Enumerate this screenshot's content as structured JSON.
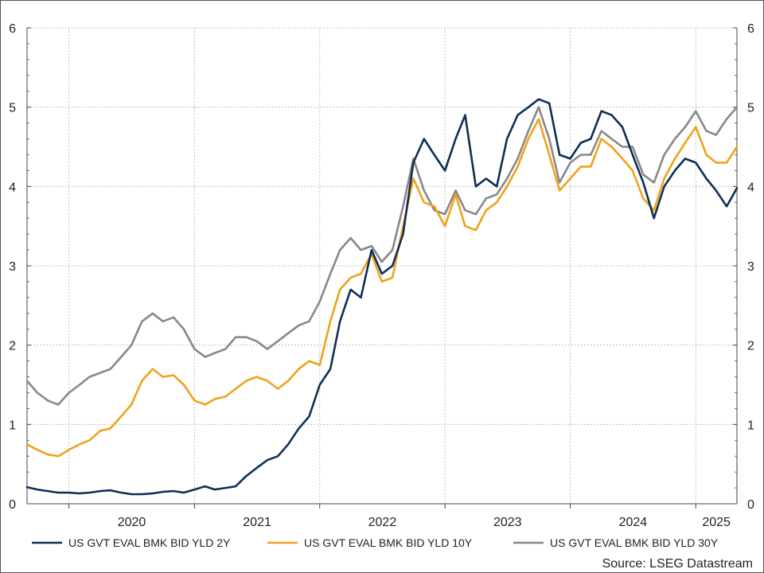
{
  "colors": {
    "series_2y": "#0d2f57",
    "series_10y": "#f0a21b",
    "series_30y": "#888888",
    "grid": "#b5b5b5",
    "axis": "#444444",
    "border": "#555555"
  },
  "chart_data": {
    "type": "line",
    "title": "",
    "xlabel": "",
    "ylabel": "",
    "x_range": [
      "2019-09-01",
      "2025-05-01"
    ],
    "ylim": [
      0,
      6
    ],
    "y_ticks": [
      0,
      1,
      2,
      3,
      4,
      5,
      6
    ],
    "y_tick_labels_left": [
      "0",
      "1",
      "2",
      "3",
      "4",
      "5",
      "6"
    ],
    "y_tick_labels_right": [
      "0",
      "1",
      "2",
      "3",
      "4",
      "5",
      "6"
    ],
    "x_tick_labels": [
      "2020",
      "2021",
      "2022",
      "2023",
      "2024",
      "2025"
    ],
    "grid": true,
    "legend_position": "bottom",
    "source": "Source: LSEG Datastream",
    "series": [
      {
        "name": "US GVT EVAL BMK BID YLD 2Y",
        "color_key": "series_2y",
        "points": [
          [
            "2019-09-01",
            0.21
          ],
          [
            "2019-10-01",
            0.18
          ],
          [
            "2019-11-01",
            0.16
          ],
          [
            "2019-12-01",
            0.14
          ],
          [
            "2020-01-01",
            0.14
          ],
          [
            "2020-02-01",
            0.13
          ],
          [
            "2020-03-01",
            0.14
          ],
          [
            "2020-04-01",
            0.16
          ],
          [
            "2020-05-01",
            0.17
          ],
          [
            "2020-06-01",
            0.14
          ],
          [
            "2020-07-01",
            0.12
          ],
          [
            "2020-08-01",
            0.12
          ],
          [
            "2020-09-01",
            0.13
          ],
          [
            "2020-10-01",
            0.15
          ],
          [
            "2020-11-01",
            0.16
          ],
          [
            "2020-12-01",
            0.14
          ],
          [
            "2021-01-01",
            0.18
          ],
          [
            "2021-02-01",
            0.22
          ],
          [
            "2021-03-01",
            0.18
          ],
          [
            "2021-04-01",
            0.2
          ],
          [
            "2021-05-01",
            0.22
          ],
          [
            "2021-06-01",
            0.35
          ],
          [
            "2021-07-01",
            0.45
          ],
          [
            "2021-08-01",
            0.55
          ],
          [
            "2021-09-01",
            0.6
          ],
          [
            "2021-10-01",
            0.75
          ],
          [
            "2021-11-01",
            0.95
          ],
          [
            "2021-12-01",
            1.1
          ],
          [
            "2022-01-01",
            1.5
          ],
          [
            "2022-02-01",
            1.7
          ],
          [
            "2022-03-01",
            2.3
          ],
          [
            "2022-04-01",
            2.7
          ],
          [
            "2022-05-01",
            2.6
          ],
          [
            "2022-06-01",
            3.2
          ],
          [
            "2022-07-01",
            2.9
          ],
          [
            "2022-08-01",
            3.0
          ],
          [
            "2022-09-01",
            3.4
          ],
          [
            "2022-10-01",
            4.3
          ],
          [
            "2022-11-01",
            4.6
          ],
          [
            "2022-12-01",
            4.4
          ],
          [
            "2023-01-01",
            4.2
          ],
          [
            "2023-02-01",
            4.6
          ],
          [
            "2023-03-01",
            4.9
          ],
          [
            "2023-04-01",
            4.0
          ],
          [
            "2023-05-01",
            4.1
          ],
          [
            "2023-06-01",
            4.0
          ],
          [
            "2023-07-01",
            4.6
          ],
          [
            "2023-08-01",
            4.9
          ],
          [
            "2023-09-01",
            5.0
          ],
          [
            "2023-10-01",
            5.1
          ],
          [
            "2023-11-01",
            5.05
          ],
          [
            "2023-12-01",
            4.4
          ],
          [
            "2024-01-01",
            4.35
          ],
          [
            "2024-02-01",
            4.55
          ],
          [
            "2024-03-01",
            4.6
          ],
          [
            "2024-04-01",
            4.95
          ],
          [
            "2024-05-01",
            4.9
          ],
          [
            "2024-06-01",
            4.75
          ],
          [
            "2024-07-01",
            4.4
          ],
          [
            "2024-08-01",
            4.05
          ],
          [
            "2024-09-01",
            3.6
          ],
          [
            "2024-10-01",
            4.0
          ],
          [
            "2024-11-01",
            4.2
          ],
          [
            "2024-12-01",
            4.35
          ],
          [
            "2025-01-01",
            4.3
          ],
          [
            "2025-02-01",
            4.1
          ],
          [
            "2025-03-01",
            3.95
          ],
          [
            "2025-04-01",
            3.75
          ],
          [
            "2025-05-01",
            3.98
          ]
        ]
      },
      {
        "name": "US GVT EVAL BMK BID YLD 10Y",
        "color_key": "series_10y",
        "points": [
          [
            "2019-09-01",
            0.75
          ],
          [
            "2019-10-01",
            0.68
          ],
          [
            "2019-11-01",
            0.62
          ],
          [
            "2019-12-01",
            0.6
          ],
          [
            "2020-01-01",
            0.68
          ],
          [
            "2020-02-01",
            0.75
          ],
          [
            "2020-03-01",
            0.8
          ],
          [
            "2020-04-01",
            0.92
          ],
          [
            "2020-05-01",
            0.95
          ],
          [
            "2020-06-01",
            1.1
          ],
          [
            "2020-07-01",
            1.25
          ],
          [
            "2020-08-01",
            1.55
          ],
          [
            "2020-09-01",
            1.7
          ],
          [
            "2020-10-01",
            1.6
          ],
          [
            "2020-11-01",
            1.62
          ],
          [
            "2020-12-01",
            1.5
          ],
          [
            "2021-01-01",
            1.3
          ],
          [
            "2021-02-01",
            1.25
          ],
          [
            "2021-03-01",
            1.32
          ],
          [
            "2021-04-01",
            1.35
          ],
          [
            "2021-05-01",
            1.45
          ],
          [
            "2021-06-01",
            1.55
          ],
          [
            "2021-07-01",
            1.6
          ],
          [
            "2021-08-01",
            1.55
          ],
          [
            "2021-09-01",
            1.45
          ],
          [
            "2021-10-01",
            1.55
          ],
          [
            "2021-11-01",
            1.7
          ],
          [
            "2021-12-01",
            1.8
          ],
          [
            "2022-01-01",
            1.75
          ],
          [
            "2022-02-01",
            2.3
          ],
          [
            "2022-03-01",
            2.7
          ],
          [
            "2022-04-01",
            2.85
          ],
          [
            "2022-05-01",
            2.9
          ],
          [
            "2022-06-01",
            3.15
          ],
          [
            "2022-07-01",
            2.8
          ],
          [
            "2022-08-01",
            2.85
          ],
          [
            "2022-09-01",
            3.5
          ],
          [
            "2022-10-01",
            4.1
          ],
          [
            "2022-11-01",
            3.8
          ],
          [
            "2022-12-01",
            3.75
          ],
          [
            "2023-01-01",
            3.5
          ],
          [
            "2023-02-01",
            3.9
          ],
          [
            "2023-03-01",
            3.5
          ],
          [
            "2023-04-01",
            3.45
          ],
          [
            "2023-05-01",
            3.7
          ],
          [
            "2023-06-01",
            3.8
          ],
          [
            "2023-07-01",
            4.0
          ],
          [
            "2023-08-01",
            4.25
          ],
          [
            "2023-09-01",
            4.6
          ],
          [
            "2023-10-01",
            4.85
          ],
          [
            "2023-11-01",
            4.4
          ],
          [
            "2023-12-01",
            3.95
          ],
          [
            "2024-01-01",
            4.1
          ],
          [
            "2024-02-01",
            4.25
          ],
          [
            "2024-03-01",
            4.25
          ],
          [
            "2024-04-01",
            4.6
          ],
          [
            "2024-05-01",
            4.5
          ],
          [
            "2024-06-01",
            4.35
          ],
          [
            "2024-07-01",
            4.2
          ],
          [
            "2024-08-01",
            3.85
          ],
          [
            "2024-09-01",
            3.7
          ],
          [
            "2024-10-01",
            4.1
          ],
          [
            "2024-11-01",
            4.35
          ],
          [
            "2024-12-01",
            4.55
          ],
          [
            "2025-01-01",
            4.75
          ],
          [
            "2025-02-01",
            4.4
          ],
          [
            "2025-03-01",
            4.3
          ],
          [
            "2025-04-01",
            4.3
          ],
          [
            "2025-05-01",
            4.5
          ]
        ]
      },
      {
        "name": "US GVT EVAL BMK BID YLD 30Y",
        "color_key": "series_30y",
        "points": [
          [
            "2019-09-01",
            1.55
          ],
          [
            "2019-10-01",
            1.4
          ],
          [
            "2019-11-01",
            1.3
          ],
          [
            "2019-12-01",
            1.25
          ],
          [
            "2020-01-01",
            1.4
          ],
          [
            "2020-02-01",
            1.5
          ],
          [
            "2020-03-01",
            1.6
          ],
          [
            "2020-04-01",
            1.65
          ],
          [
            "2020-05-01",
            1.7
          ],
          [
            "2020-06-01",
            1.85
          ],
          [
            "2020-07-01",
            2.0
          ],
          [
            "2020-08-01",
            2.3
          ],
          [
            "2020-09-01",
            2.4
          ],
          [
            "2020-10-01",
            2.3
          ],
          [
            "2020-11-01",
            2.35
          ],
          [
            "2020-12-01",
            2.2
          ],
          [
            "2021-01-01",
            1.95
          ],
          [
            "2021-02-01",
            1.85
          ],
          [
            "2021-03-01",
            1.9
          ],
          [
            "2021-04-01",
            1.95
          ],
          [
            "2021-05-01",
            2.1
          ],
          [
            "2021-06-01",
            2.1
          ],
          [
            "2021-07-01",
            2.05
          ],
          [
            "2021-08-01",
            1.95
          ],
          [
            "2021-09-01",
            2.05
          ],
          [
            "2021-10-01",
            2.15
          ],
          [
            "2021-11-01",
            2.25
          ],
          [
            "2021-12-01",
            2.3
          ],
          [
            "2022-01-01",
            2.55
          ],
          [
            "2022-02-01",
            2.9
          ],
          [
            "2022-03-01",
            3.2
          ],
          [
            "2022-04-01",
            3.35
          ],
          [
            "2022-05-01",
            3.2
          ],
          [
            "2022-06-01",
            3.25
          ],
          [
            "2022-07-01",
            3.05
          ],
          [
            "2022-08-01",
            3.2
          ],
          [
            "2022-09-01",
            3.75
          ],
          [
            "2022-10-01",
            4.35
          ],
          [
            "2022-11-01",
            3.95
          ],
          [
            "2022-12-01",
            3.7
          ],
          [
            "2023-01-01",
            3.65
          ],
          [
            "2023-02-01",
            3.95
          ],
          [
            "2023-03-01",
            3.7
          ],
          [
            "2023-04-01",
            3.65
          ],
          [
            "2023-05-01",
            3.85
          ],
          [
            "2023-06-01",
            3.9
          ],
          [
            "2023-07-01",
            4.1
          ],
          [
            "2023-08-01",
            4.35
          ],
          [
            "2023-09-01",
            4.7
          ],
          [
            "2023-10-01",
            5.0
          ],
          [
            "2023-11-01",
            4.6
          ],
          [
            "2023-12-01",
            4.05
          ],
          [
            "2024-01-01",
            4.3
          ],
          [
            "2024-02-01",
            4.4
          ],
          [
            "2024-03-01",
            4.4
          ],
          [
            "2024-04-01",
            4.7
          ],
          [
            "2024-05-01",
            4.6
          ],
          [
            "2024-06-01",
            4.5
          ],
          [
            "2024-07-01",
            4.5
          ],
          [
            "2024-08-01",
            4.15
          ],
          [
            "2024-09-01",
            4.05
          ],
          [
            "2024-10-01",
            4.4
          ],
          [
            "2024-11-01",
            4.6
          ],
          [
            "2024-12-01",
            4.75
          ],
          [
            "2025-01-01",
            4.95
          ],
          [
            "2025-02-01",
            4.7
          ],
          [
            "2025-03-01",
            4.65
          ],
          [
            "2025-04-01",
            4.85
          ],
          [
            "2025-05-01",
            5.0
          ]
        ]
      }
    ]
  }
}
